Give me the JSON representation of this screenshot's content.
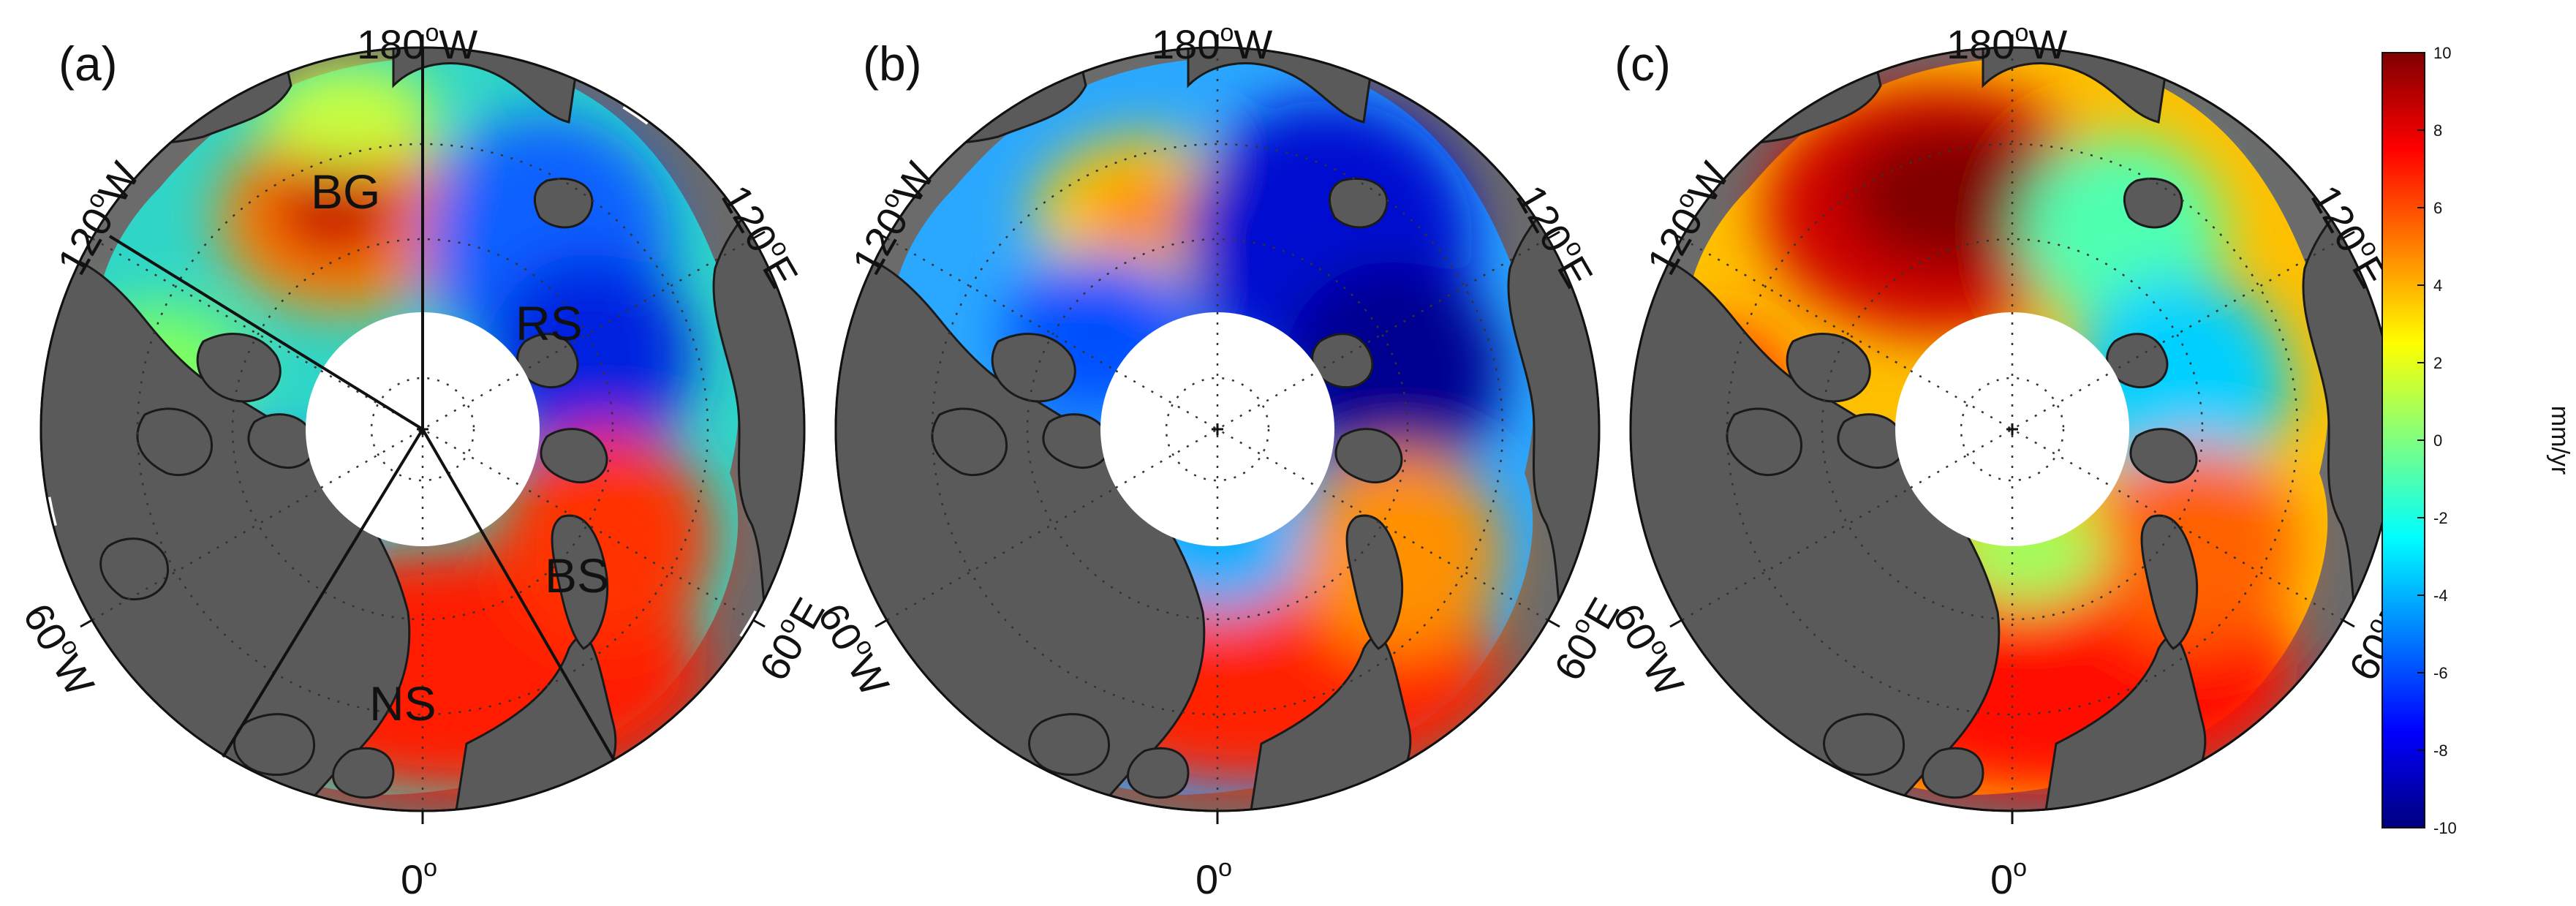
{
  "panels": [
    {
      "label": "(a)",
      "lon_labels": {
        "top": "180",
        "top_unit": "W",
        "upper_left": "120",
        "upper_left_unit": "W",
        "upper_right": "120",
        "upper_right_unit": "E",
        "lower_left": "60",
        "lower_left_unit": "W",
        "lower_right": "60",
        "lower_right_unit": "E",
        "bottom": "0",
        "bottom_unit": ""
      },
      "regions": [
        "BG",
        "RS",
        "BS",
        "NS"
      ],
      "dominant_trend": "mixed"
    },
    {
      "label": "(b)",
      "lon_labels": {
        "top": "180",
        "top_unit": "W",
        "upper_left": "120",
        "upper_left_unit": "W",
        "upper_right": "120",
        "upper_right_unit": "E",
        "lower_left": "60",
        "lower_left_unit": "W",
        "lower_right": "60",
        "lower_right_unit": "E",
        "bottom": "0",
        "bottom_unit": ""
      },
      "regions": [],
      "dominant_trend": "negative-pacific"
    },
    {
      "label": "(c)",
      "lon_labels": {
        "top": "180",
        "top_unit": "W",
        "upper_left": "120",
        "upper_left_unit": "W",
        "upper_right": "120",
        "upper_right_unit": "E",
        "lower_left": "60",
        "lower_left_unit": "W",
        "lower_right": "60",
        "lower_right_unit": "E",
        "bottom": "0",
        "bottom_unit": ""
      },
      "regions": [],
      "dominant_trend": "positive"
    }
  ],
  "degree_symbol": "o",
  "colorbar": {
    "unit": "mm/yr",
    "min": -10,
    "max": 10,
    "ticks": [
      "10",
      "8",
      "6",
      "4",
      "2",
      "0",
      "-2",
      "-4",
      "-6",
      "-8",
      "-10"
    ],
    "colormap": "jet",
    "colors": [
      "#00007f",
      "#0000ff",
      "#007fff",
      "#00ffff",
      "#7fff7f",
      "#ffff00",
      "#ff7f00",
      "#ff0000",
      "#7f0000"
    ]
  },
  "colors": {
    "land": "#5a5a5a",
    "outer_ring": "#6b6b6b",
    "pole_hole": "#ffffff",
    "coast": "#1a1a1a"
  }
}
